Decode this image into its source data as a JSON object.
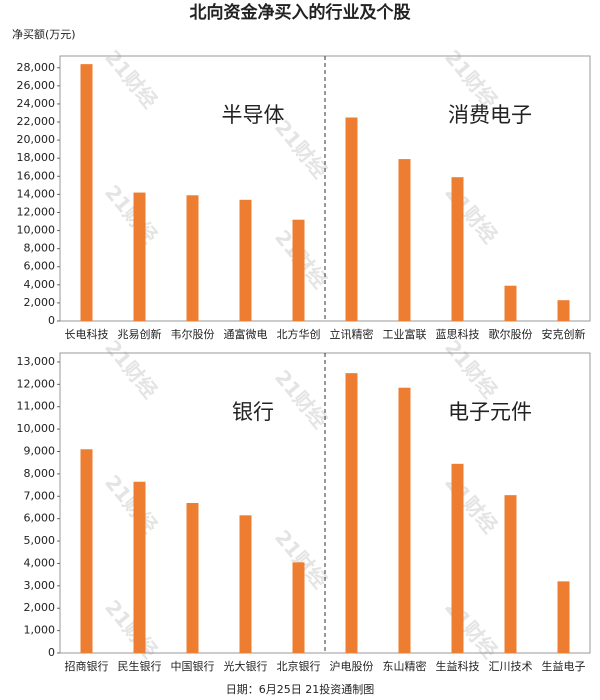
{
  "title": "北向资金净买入的行业及个股",
  "y_axis_label": "净买额(万元)",
  "footer": "日期：6月25日 21投资通制图",
  "watermark": "21财经",
  "chart_data": [
    {
      "type": "bar",
      "color": "#ed7d31",
      "categories": [
        "长电科技",
        "兆易创新",
        "韦尔股份",
        "通富微电",
        "北方华创",
        "立讯精密",
        "工业富联",
        "蓝思科技",
        "歌尔股份",
        "安克创新"
      ],
      "values": [
        28400,
        14200,
        13900,
        13400,
        11200,
        22500,
        17900,
        15900,
        3900,
        2300
      ],
      "ylim": [
        0,
        29300
      ],
      "yticks": [
        0,
        {
          "value": 2000,
          "label": "2,000"
        },
        {
          "value": 4000,
          "label": "4,000"
        },
        {
          "value": 6000,
          "label": "6,000"
        },
        {
          "value": 8000,
          "label": "8,000"
        },
        {
          "value": 10000,
          "label": "10,000"
        },
        {
          "value": 12000,
          "label": "12,000"
        },
        {
          "value": 14000,
          "label": "14,000"
        },
        {
          "value": 16000,
          "label": "16,000"
        },
        {
          "value": 18000,
          "label": "18,000"
        },
        {
          "value": 20000,
          "label": "20,000"
        },
        {
          "value": 22000,
          "label": "22,000"
        },
        {
          "value": 24000,
          "label": "24,000"
        },
        {
          "value": 26000,
          "label": "26,000"
        },
        {
          "value": 28000,
          "label": "28,000"
        }
      ],
      "annotations": [
        "半导体",
        "消费电子"
      ]
    },
    {
      "type": "bar",
      "color": "#ed7d31",
      "categories": [
        "招商银行",
        "民生银行",
        "中国银行",
        "光大银行",
        "北京银行",
        "沪电股份",
        "东山精密",
        "生益科技",
        "汇川技术",
        "生益电子"
      ],
      "values": [
        9100,
        7650,
        6700,
        6150,
        4050,
        12500,
        11850,
        8450,
        7050,
        3200
      ],
      "ylim": [
        0,
        13400
      ],
      "yticks": [
        0,
        {
          "value": 1000,
          "label": "1,000"
        },
        {
          "value": 2000,
          "label": "2,000"
        },
        {
          "value": 3000,
          "label": "3,000"
        },
        {
          "value": 4000,
          "label": "4,000"
        },
        {
          "value": 5000,
          "label": "5,000"
        },
        {
          "value": 6000,
          "label": "6,000"
        },
        {
          "value": 7000,
          "label": "7,000"
        },
        {
          "value": 8000,
          "label": "8,000"
        },
        {
          "value": 9000,
          "label": "9,000"
        },
        {
          "value": 10000,
          "label": "10,000"
        },
        {
          "value": 11000,
          "label": "11,000"
        },
        {
          "value": 12000,
          "label": "12,000"
        },
        {
          "value": 13000,
          "label": "13,000"
        }
      ],
      "annotations": [
        "银行",
        "电子元件"
      ]
    }
  ]
}
